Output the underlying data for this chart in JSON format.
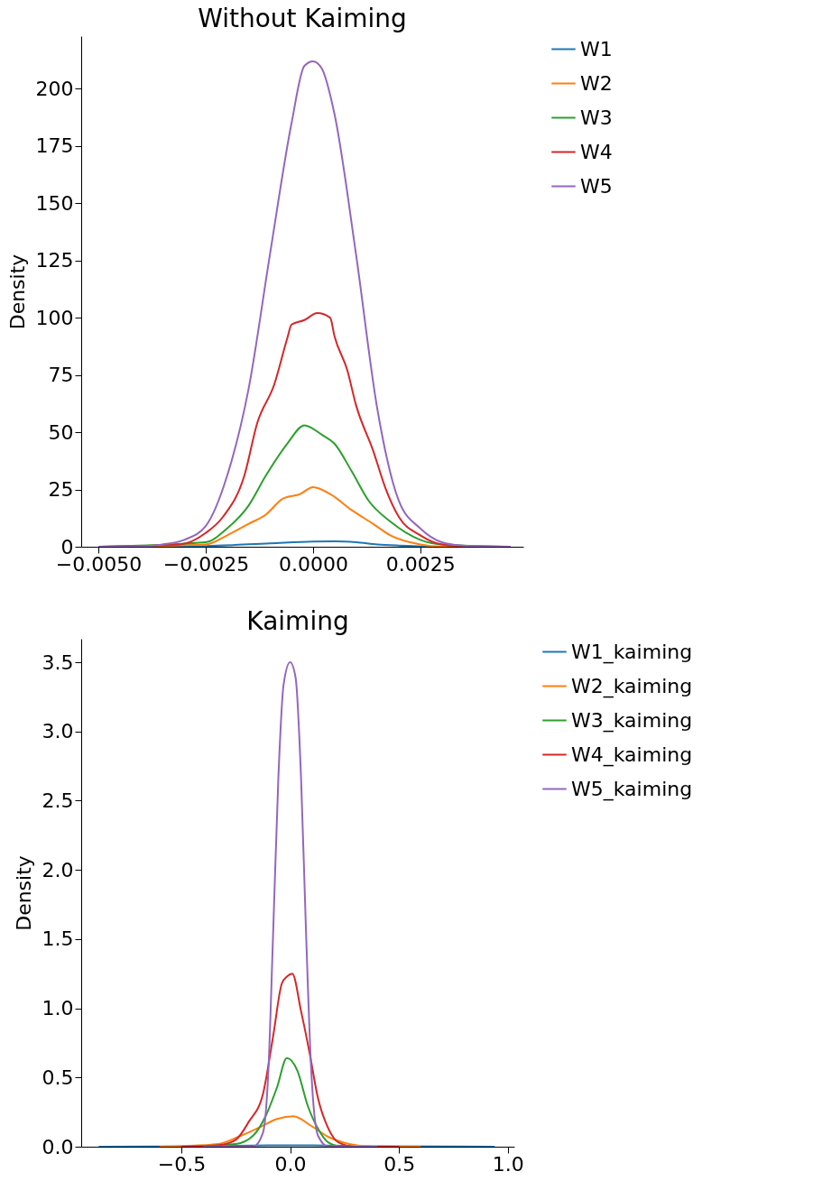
{
  "chart_data": [
    {
      "type": "line",
      "title": "Without Kaiming",
      "ylabel": "Density",
      "legend": "right",
      "grid": false,
      "xlim": [
        -0.0054,
        0.0049
      ],
      "ylim": [
        0,
        223
      ],
      "xticks": [
        {
          "value": -0.005,
          "label": "−0.0050"
        },
        {
          "value": -0.0025,
          "label": "−0.0025"
        },
        {
          "value": 0,
          "label": "0.0000"
        },
        {
          "value": 0.0025,
          "label": "0.0025"
        }
      ],
      "yticks": [
        0,
        25,
        50,
        75,
        100,
        125,
        150,
        175,
        200
      ],
      "series": [
        {
          "name": "W1",
          "color": "#1f77b4",
          "x": [
            -0.005,
            -0.0025,
            -0.001,
            0,
            0.0005,
            0.001,
            0.0015,
            0.002,
            0.003,
            0.0046
          ],
          "values": [
            0,
            0.3,
            1.5,
            2.3,
            2.4,
            2,
            1,
            0.5,
            0.1,
            0
          ]
        },
        {
          "name": "W2",
          "color": "#ff7f0e",
          "x": [
            -0.005,
            -0.0025,
            -0.002,
            -0.0015,
            -0.0011,
            -0.0007,
            -0.0003,
            0,
            0.0004,
            0.0009,
            0.0014,
            0.0018,
            0.0025,
            0.003,
            0.0046
          ],
          "values": [
            0,
            1,
            5,
            10,
            14,
            21,
            23,
            26,
            23,
            16,
            10,
            5,
            1,
            0,
            0
          ]
        },
        {
          "name": "W3",
          "color": "#2ca02c",
          "x": [
            -0.005,
            -0.0025,
            -0.002,
            -0.0015,
            -0.0011,
            -0.0006,
            -0.0002,
            0.0002,
            0.0005,
            0.0009,
            0.0013,
            0.0018,
            0.0025,
            0.003,
            0.0046
          ],
          "values": [
            0,
            2,
            8,
            18,
            31,
            45,
            53,
            49,
            45,
            33,
            20,
            11,
            3,
            1,
            0
          ]
        },
        {
          "name": "W4",
          "color": "#d62728",
          "x": [
            -0.005,
            -0.0031,
            -0.0025,
            -0.0021,
            -0.0016,
            -0.0013,
            -0.0009,
            -0.0006,
            -0.0005,
            -0.0002,
            0.0001,
            0.0004,
            0.0005,
            0.0008,
            0.001,
            0.0014,
            0.0017,
            0.002,
            0.0025,
            0.003,
            0.0035,
            0.0046
          ],
          "values": [
            0,
            1,
            6,
            13,
            31,
            54,
            71,
            91,
            97,
            99,
            102,
            100,
            92,
            77,
            62,
            42,
            25,
            13,
            5,
            1,
            0.3,
            0
          ]
        },
        {
          "name": "W5",
          "color": "#9467bd",
          "x": [
            -0.005,
            -0.004,
            -0.0035,
            -0.003,
            -0.0025,
            -0.002,
            -0.0015,
            -0.001,
            -0.0005,
            -0.0002,
            0,
            0.0002,
            0.0005,
            0.001,
            0.0015,
            0.002,
            0.0025,
            0.003,
            0.0035,
            0.004,
            0.0046
          ],
          "values": [
            0,
            0.2,
            1,
            3,
            9,
            31,
            69,
            128,
            185,
            210,
            212,
            209,
            189,
            128,
            60,
            20,
            8,
            2,
            0.5,
            0.2,
            0
          ]
        }
      ]
    },
    {
      "type": "line",
      "title": "Kaiming",
      "ylabel": "Density",
      "legend": "right",
      "grid": false,
      "xlim": [
        -0.96,
        1.03
      ],
      "ylim": [
        0,
        3.67
      ],
      "xticks": [
        {
          "value": -0.5,
          "label": "−0.5"
        },
        {
          "value": 0,
          "label": "0.0"
        },
        {
          "value": 0.5,
          "label": "0.5"
        },
        {
          "value": 1,
          "label": "1.0"
        }
      ],
      "yticks": [
        {
          "value": 0,
          "label": "0.0"
        },
        {
          "value": 0.5,
          "label": "0.5"
        },
        {
          "value": 1,
          "label": "1.0"
        },
        {
          "value": 1.5,
          "label": "1.5"
        },
        {
          "value": 2,
          "label": "2.0"
        },
        {
          "value": 2.5,
          "label": "2.5"
        },
        {
          "value": 3,
          "label": "3.0"
        },
        {
          "value": 3.5,
          "label": "3.5"
        }
      ],
      "series": [
        {
          "name": "W1_kaiming",
          "color": "#1f77b4",
          "x": [
            -0.88,
            -0.4,
            -0.1,
            0,
            0.1,
            0.4,
            0.94
          ],
          "values": [
            0,
            0.003,
            0.01,
            0.01,
            0.01,
            0.003,
            0
          ]
        },
        {
          "name": "W2_kaiming",
          "color": "#ff7f0e",
          "x": [
            -0.6,
            -0.49,
            -0.33,
            -0.24,
            -0.14,
            -0.06,
            0.015,
            0.097,
            0.176,
            0.27,
            0.38,
            0.6
          ],
          "values": [
            0,
            0.005,
            0.02,
            0.07,
            0.14,
            0.2,
            0.22,
            0.15,
            0.07,
            0.02,
            0,
            0
          ]
        },
        {
          "name": "W3_kaiming",
          "color": "#2ca02c",
          "x": [
            -0.5,
            -0.25,
            -0.17,
            -0.11,
            -0.06,
            -0.015,
            0.033,
            0.08,
            0.128,
            0.176,
            0.24,
            0.5
          ],
          "values": [
            0,
            0.02,
            0.08,
            0.23,
            0.43,
            0.64,
            0.55,
            0.3,
            0.13,
            0.03,
            0,
            0
          ]
        },
        {
          "name": "W4_kaiming",
          "color": "#d62728",
          "x": [
            -0.5,
            -0.33,
            -0.25,
            -0.19,
            -0.125,
            -0.078,
            -0.038,
            -0.014,
            0.01,
            0.05,
            0.089,
            0.128,
            0.176,
            0.223,
            0.3,
            0.5
          ],
          "values": [
            0,
            0.01,
            0.05,
            0.18,
            0.38,
            0.8,
            1.18,
            1.23,
            1.25,
            0.98,
            0.68,
            0.35,
            0.13,
            0.03,
            0,
            0
          ]
        },
        {
          "name": "W5_kaiming",
          "color": "#9467bd",
          "x": [
            -0.4,
            -0.17,
            -0.125,
            -0.1,
            -0.078,
            -0.054,
            -0.03,
            0,
            0.025,
            0.05,
            0.073,
            0.097,
            0.128,
            0.176,
            0.4
          ],
          "values": [
            0,
            0,
            0.1,
            0.55,
            1.55,
            2.67,
            3.34,
            3.5,
            3.39,
            2.67,
            1.55,
            0.55,
            0.08,
            0,
            0
          ]
        }
      ]
    }
  ]
}
